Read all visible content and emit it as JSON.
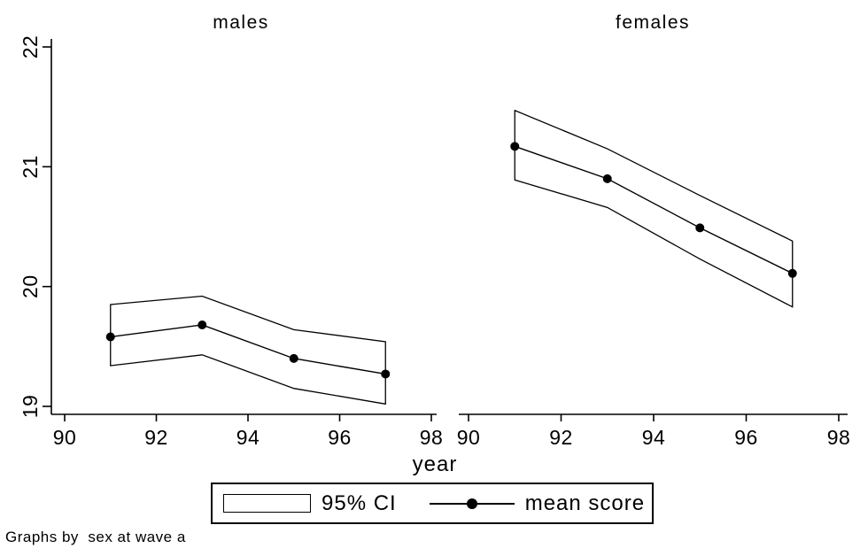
{
  "figure": {
    "background": "#ffffff",
    "ink": "#000000",
    "footer": "Graphs by  sex at wave a"
  },
  "legend": {
    "ci_label": "95% CI",
    "mean_label": "mean score"
  },
  "chart_data": {
    "type": "line",
    "title": "",
    "xlabel": "year",
    "ylabel": "",
    "facet_note": "Graphs by  sex at wave a",
    "x_ticks": [
      90,
      92,
      94,
      96,
      98
    ],
    "y_ticks": [
      19,
      20,
      21,
      22
    ],
    "xlim": [
      89.7,
      98.3
    ],
    "ylim": [
      18.93,
      22.06
    ],
    "grid": false,
    "legend_position": "bottom",
    "series_labels": [
      "95% CI",
      "mean score"
    ],
    "panels": [
      {
        "title": "males",
        "x": [
          91,
          93,
          95,
          97
        ],
        "mean": [
          19.58,
          19.68,
          19.4,
          19.27
        ],
        "ci_low": [
          19.34,
          19.43,
          19.15,
          19.02
        ],
        "ci_high": [
          19.85,
          19.92,
          19.64,
          19.54
        ]
      },
      {
        "title": "females",
        "x": [
          91,
          93,
          95,
          97
        ],
        "mean": [
          21.17,
          20.9,
          20.49,
          20.11
        ],
        "ci_low": [
          20.89,
          20.66,
          20.23,
          19.83
        ],
        "ci_high": [
          21.47,
          21.15,
          20.76,
          20.38
        ]
      }
    ]
  }
}
